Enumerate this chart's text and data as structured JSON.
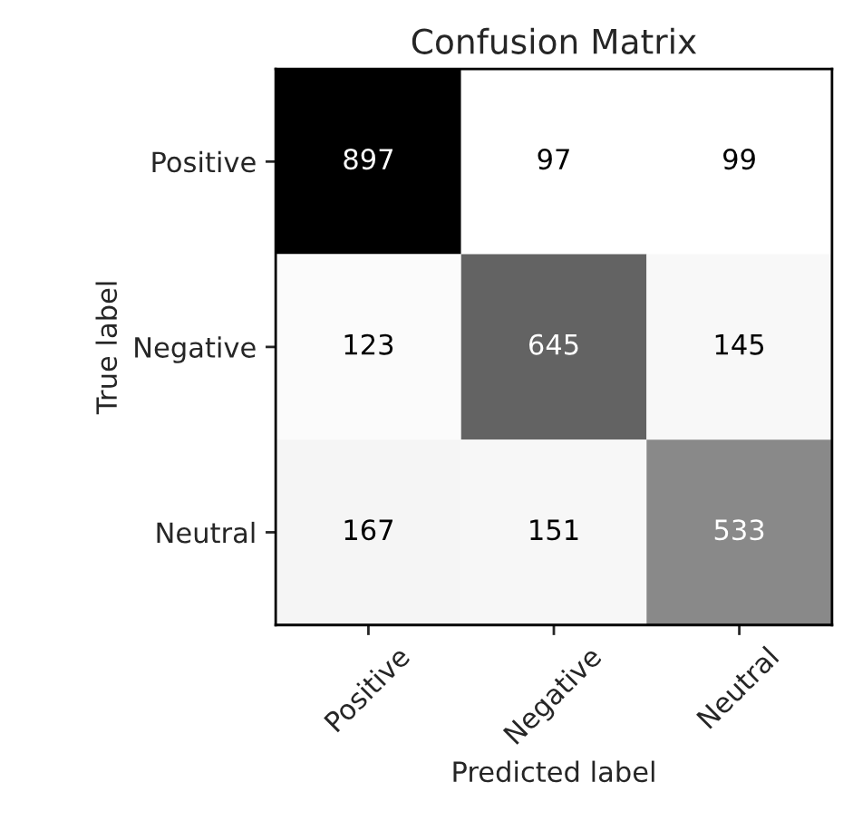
{
  "chart_data": {
    "type": "heatmap",
    "title": "Confusion Matrix",
    "xlabel": "Predicted label",
    "ylabel": "True label",
    "categories": [
      "Positive",
      "Negative",
      "Neutral"
    ],
    "y_categories": [
      "Positive",
      "Negative",
      "Neutral"
    ],
    "cells": [
      [
        897,
        97,
        99
      ],
      [
        123,
        645,
        145
      ],
      [
        167,
        151,
        533
      ]
    ],
    "data_labels": true
  }
}
